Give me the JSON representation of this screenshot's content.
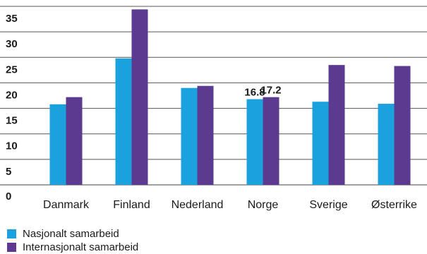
{
  "chart_data": {
    "type": "bar",
    "categories": [
      "Danmark",
      "Finland",
      "Nederland",
      "Norge",
      "Sverige",
      "Østerrike"
    ],
    "series": [
      {
        "name": "Nasjonalt samarbeid",
        "values": [
          15.8,
          24.8,
          19.0,
          16.8,
          16.3,
          15.9
        ],
        "color": "#1ba1de"
      },
      {
        "name": "Internasjonalt samarbeid",
        "values": [
          17.2,
          34.4,
          19.4,
          17.2,
          23.5,
          23.3
        ],
        "color": "#5b3a8f"
      }
    ],
    "data_labels": [
      {
        "category": "Norge",
        "series": "Nasjonalt samarbeid",
        "text": "16.8"
      },
      {
        "category": "Norge",
        "series": "Internasjonalt samarbeid",
        "text": "17.2"
      }
    ],
    "y_ticks": [
      "0",
      "5",
      "10",
      "15",
      "20",
      "25",
      "30",
      "35"
    ],
    "ylim": [
      0,
      35
    ],
    "grid": true,
    "legend_position": "bottom-left",
    "title": "",
    "xlabel": "",
    "ylabel": ""
  }
}
